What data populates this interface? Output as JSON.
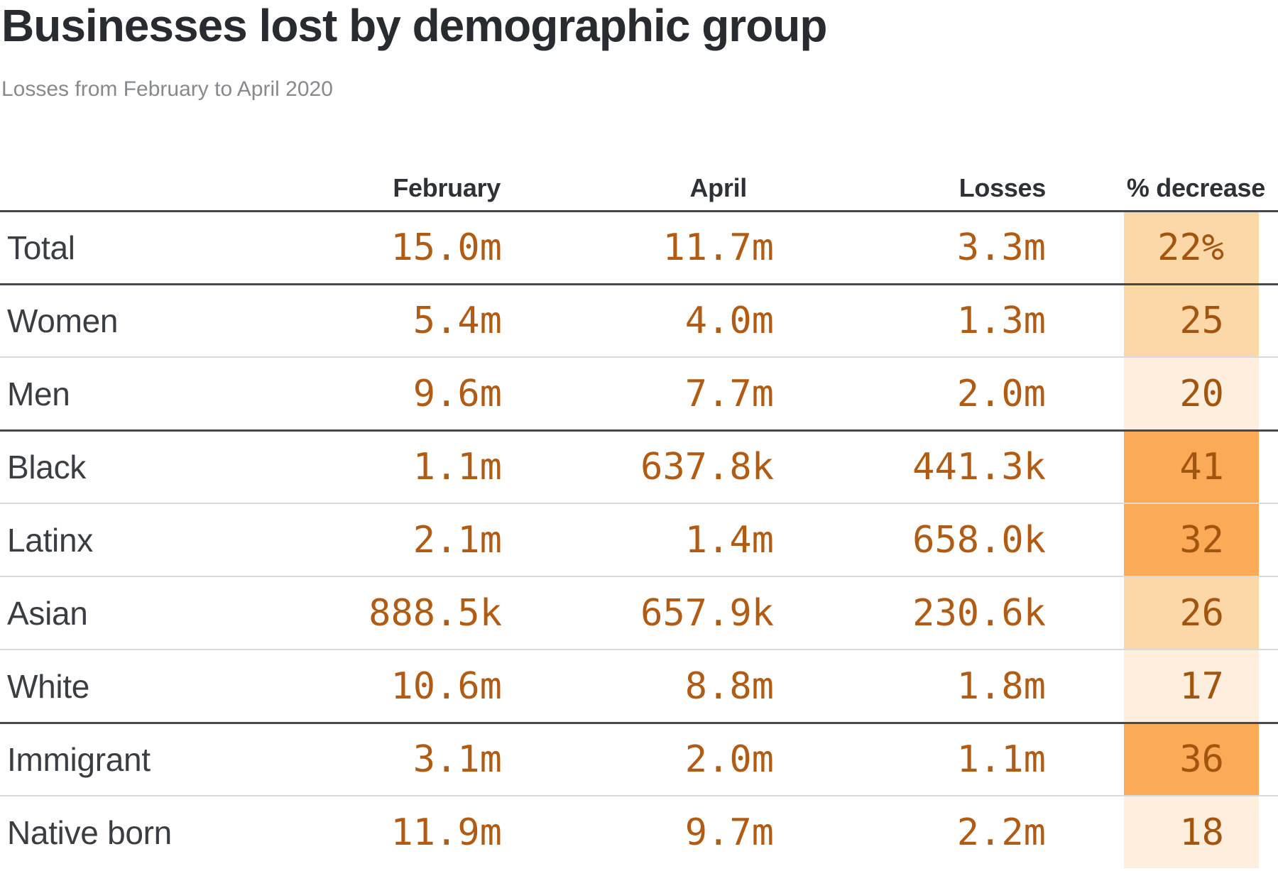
{
  "header": {
    "title": "Businesses lost by demographic group",
    "subtitle": "Losses from February to April 2020"
  },
  "table": {
    "columns": {
      "february": "February",
      "april": "April",
      "losses": "Losses",
      "decrease": "% decrease"
    },
    "rows": [
      {
        "label": "Total",
        "february": "15.0m",
        "april": "11.7m",
        "losses": "3.3m",
        "decrease": "22%",
        "heat": "light"
      },
      {
        "label": "Women",
        "february": "5.4m",
        "april": "4.0m",
        "losses": "1.3m",
        "decrease": "25",
        "heat": "light"
      },
      {
        "label": "Men",
        "february": "9.6m",
        "april": "7.7m",
        "losses": "2.0m",
        "decrease": "20",
        "heat": "pale"
      },
      {
        "label": "Black",
        "february": "1.1m",
        "april": "637.8k",
        "losses": "441.3k",
        "decrease": "41",
        "heat": "mid"
      },
      {
        "label": "Latinx",
        "february": "2.1m",
        "april": "1.4m",
        "losses": "658.0k",
        "decrease": "32",
        "heat": "mid"
      },
      {
        "label": "Asian",
        "february": "888.5k",
        "april": "657.9k",
        "losses": "230.6k",
        "decrease": "26",
        "heat": "light"
      },
      {
        "label": "White",
        "february": "10.6m",
        "april": "8.8m",
        "losses": "1.8m",
        "decrease": "17",
        "heat": "pale"
      },
      {
        "label": "Immigrant",
        "february": "3.1m",
        "april": "2.0m",
        "losses": "1.1m",
        "decrease": "36",
        "heat": "mid"
      },
      {
        "label": "Native born",
        "february": "11.9m",
        "april": "9.7m",
        "losses": "2.2m",
        "decrease": "18",
        "heat": "pale"
      }
    ]
  },
  "colors": {
    "title_text": "#282b30",
    "subtitle_text": "#87898e",
    "header_text": "#2e3237",
    "label_text": "#3a3e43",
    "value_text": "#b05c14",
    "decrease_text": "#a2550f",
    "separator_dark": "#45484d",
    "separator_light": "#d9dadc",
    "shades": {
      "pale": "#fdeedd",
      "light": "#fcd8a9",
      "mid": "#fbaa57"
    }
  },
  "chart_data": {
    "type": "table",
    "title": "Businesses lost by demographic group",
    "subtitle": "Losses from February to April 2020",
    "columns": [
      "February",
      "April",
      "Losses",
      "% decrease"
    ],
    "rows": [
      {
        "group": "Total",
        "february_businesses": "15.0m",
        "april_businesses": "11.7m",
        "losses": "3.3m",
        "percent_decrease": 22
      },
      {
        "group": "Women",
        "february_businesses": "5.4m",
        "april_businesses": "4.0m",
        "losses": "1.3m",
        "percent_decrease": 25
      },
      {
        "group": "Men",
        "february_businesses": "9.6m",
        "april_businesses": "7.7m",
        "losses": "2.0m",
        "percent_decrease": 20
      },
      {
        "group": "Black",
        "february_businesses": "1.1m",
        "april_businesses": "637.8k",
        "losses": "441.3k",
        "percent_decrease": 41
      },
      {
        "group": "Latinx",
        "february_businesses": "2.1m",
        "april_businesses": "1.4m",
        "losses": "658.0k",
        "percent_decrease": 32
      },
      {
        "group": "Asian",
        "february_businesses": "888.5k",
        "april_businesses": "657.9k",
        "losses": "230.6k",
        "percent_decrease": 26
      },
      {
        "group": "White",
        "february_businesses": "10.6m",
        "april_businesses": "8.8m",
        "losses": "1.8m",
        "percent_decrease": 17
      },
      {
        "group": "Immigrant",
        "february_businesses": "3.1m",
        "april_businesses": "2.0m",
        "losses": "1.1m",
        "percent_decrease": 36
      },
      {
        "group": "Native born",
        "february_businesses": "11.9m",
        "april_businesses": "9.7m",
        "losses": "2.2m",
        "percent_decrease": 18
      }
    ],
    "heat_buckets": {
      "pale_17_to_20": [
        17,
        18,
        20
      ],
      "light_22_to_26": [
        22,
        25,
        26
      ],
      "mid_32_to_41": [
        32,
        36,
        41
      ]
    },
    "legend_position": "none",
    "grid": "horizontal-separators"
  }
}
